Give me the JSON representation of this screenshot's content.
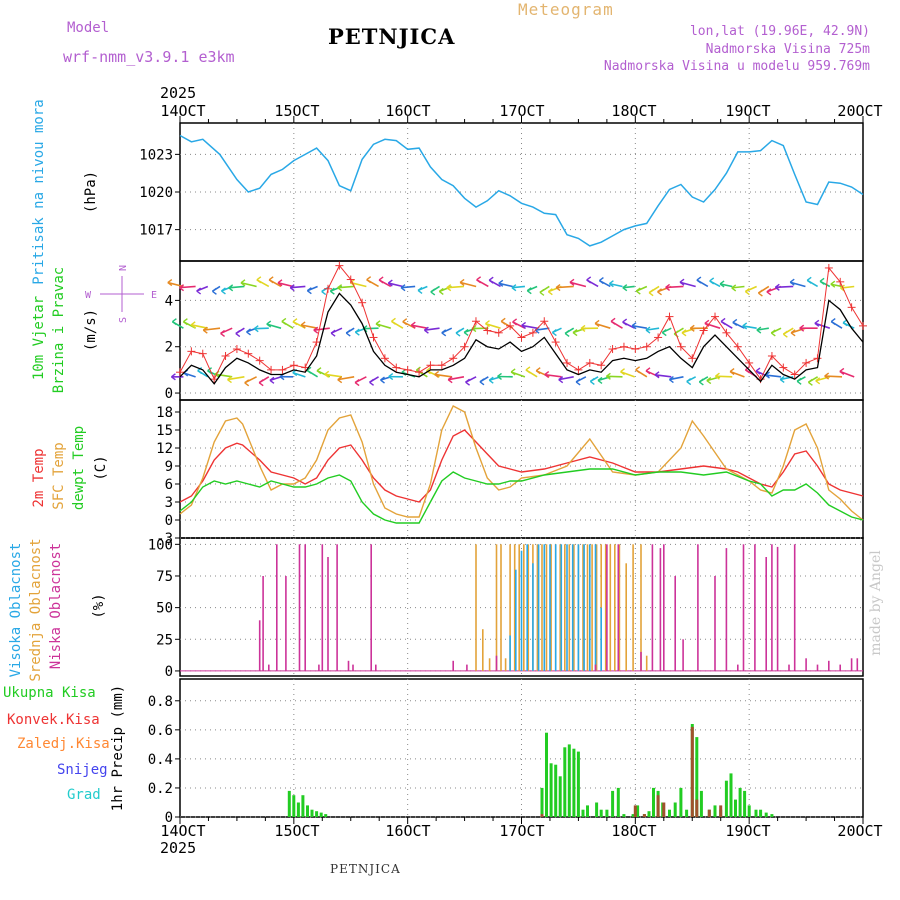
{
  "header": {
    "model_label": "Model",
    "model_value": "wrf-nmm_v3.9.1 e3km",
    "station": "PETNJICA",
    "meteogram": "Meteogram",
    "lonlat": "lon,lat (19.96E, 42.9N)",
    "altitude": "Nadmorska Visina 725m",
    "model_altitude": "Nadmorska Visina u modelu 959.769m",
    "year_top": "2025",
    "year_bottom": "2025",
    "footer_station": "PETNJICA",
    "credit": "made by Angel"
  },
  "x_axis": {
    "labels": [
      "14OCT",
      "15OCT",
      "16OCT",
      "17OCT",
      "18OCT",
      "19OCT",
      "20OCT"
    ],
    "days": [
      14,
      15,
      16,
      17,
      18,
      19,
      20
    ]
  },
  "colors": {
    "pressure": "#29a8e6",
    "wind_speed": "#000000",
    "wind_gust": "#ee3333",
    "temp2m": "#ee3333",
    "sfc_temp": "#e3a33a",
    "dewpt": "#22cc22",
    "cloud_high": "#29a8e6",
    "cloud_mid": "#e3a33a",
    "cloud_low": "#cc3399",
    "precip_total": "#22cc22",
    "precip_conv": "#ee3333",
    "precip_frz": "#ff8833",
    "precip_snow": "#4444ee",
    "precip_hail": "#22cccc"
  },
  "chart_data": [
    {
      "type": "line",
      "id": "pressure",
      "ylabel_main": "Pritisak na nivou mora",
      "ylabel_unit": "(hPa)",
      "yticks": [
        "1017",
        "1020",
        "1023"
      ],
      "ytick_values": [
        1017,
        1020,
        1023
      ],
      "ylim": [
        1014.5,
        1025.5
      ],
      "x": [
        14.0,
        14.1,
        14.2,
        14.35,
        14.5,
        14.6,
        14.7,
        14.8,
        14.9,
        15.0,
        15.1,
        15.2,
        15.3,
        15.4,
        15.5,
        15.6,
        15.7,
        15.8,
        15.9,
        16.0,
        16.1,
        16.2,
        16.3,
        16.4,
        16.5,
        16.6,
        16.7,
        16.8,
        16.9,
        17.0,
        17.1,
        17.2,
        17.3,
        17.4,
        17.5,
        17.6,
        17.7,
        17.8,
        17.9,
        18.0,
        18.1,
        18.2,
        18.3,
        18.4,
        18.5,
        18.6,
        18.7,
        18.8,
        18.9,
        19.0,
        19.1,
        19.2,
        19.3,
        19.4,
        19.5,
        19.6,
        19.7,
        19.8,
        19.9,
        20.0
      ],
      "y": [
        1024.5,
        1024.0,
        1024.2,
        1023.0,
        1021.0,
        1020.0,
        1020.3,
        1021.4,
        1021.8,
        1022.5,
        1023.0,
        1023.5,
        1022.5,
        1020.5,
        1020.1,
        1022.6,
        1023.8,
        1024.2,
        1024.1,
        1023.4,
        1023.5,
        1022.0,
        1021.0,
        1020.5,
        1019.5,
        1018.8,
        1019.3,
        1020.1,
        1019.7,
        1019.1,
        1018.8,
        1018.3,
        1018.2,
        1016.6,
        1016.3,
        1015.7,
        1016.0,
        1016.5,
        1017.0,
        1017.3,
        1017.5,
        1018.9,
        1020.2,
        1020.6,
        1019.6,
        1019.2,
        1020.2,
        1021.5,
        1023.2,
        1023.2,
        1023.3,
        1024.1,
        1023.7,
        1021.4,
        1019.2,
        1019.0,
        1020.8,
        1020.7,
        1020.4,
        1019.8
      ]
    },
    {
      "type": "line",
      "id": "wind",
      "ylabel_main": "10m Vjetar",
      "ylabel_sub": "Brzina i Pravac",
      "ylabel_unit": "(m/s)",
      "direction_legend": {
        "north": "N",
        "south": "S",
        "west": "W",
        "east": "E"
      },
      "yticks": [
        "0",
        "2",
        "4"
      ],
      "ytick_values": [
        0,
        2,
        4
      ],
      "ylim": [
        -0.3,
        5.7
      ],
      "x": [
        14.0,
        14.1,
        14.2,
        14.3,
        14.4,
        14.5,
        14.6,
        14.7,
        14.8,
        14.9,
        15.0,
        15.1,
        15.2,
        15.3,
        15.4,
        15.5,
        15.6,
        15.7,
        15.8,
        15.9,
        16.0,
        16.1,
        16.2,
        16.3,
        16.4,
        16.5,
        16.6,
        16.7,
        16.8,
        16.9,
        17.0,
        17.1,
        17.2,
        17.3,
        17.4,
        17.5,
        17.6,
        17.7,
        17.8,
        17.9,
        18.0,
        18.1,
        18.2,
        18.3,
        18.4,
        18.5,
        18.6,
        18.7,
        18.8,
        18.9,
        19.0,
        19.1,
        19.2,
        19.3,
        19.4,
        19.5,
        19.6,
        19.7,
        19.8,
        19.9,
        20.0
      ],
      "speed": [
        0.7,
        1.2,
        1.0,
        0.4,
        1.1,
        1.5,
        1.3,
        1.0,
        0.8,
        0.8,
        1.0,
        0.9,
        1.6,
        3.5,
        4.3,
        3.8,
        3.0,
        1.8,
        1.2,
        0.9,
        0.8,
        0.7,
        1.0,
        1.0,
        1.2,
        1.5,
        2.3,
        2.0,
        1.9,
        2.2,
        1.8,
        2.0,
        2.4,
        1.7,
        1.0,
        0.8,
        1.0,
        0.9,
        1.4,
        1.5,
        1.4,
        1.5,
        1.8,
        2.0,
        1.5,
        1.1,
        2.0,
        2.5,
        2.0,
        1.5,
        1.0,
        0.5,
        1.2,
        0.8,
        0.6,
        1.0,
        1.1,
        4.0,
        3.6,
        2.8,
        2.2
      ],
      "gust": [
        0.9,
        1.8,
        1.7,
        0.6,
        1.6,
        1.9,
        1.7,
        1.4,
        1.0,
        1.0,
        1.2,
        1.1,
        2.2,
        4.5,
        5.5,
        4.9,
        3.9,
        2.4,
        1.5,
        1.1,
        1.0,
        0.9,
        1.2,
        1.2,
        1.5,
        2.0,
        3.1,
        2.7,
        2.6,
        2.9,
        2.4,
        2.6,
        3.1,
        2.2,
        1.3,
        1.0,
        1.3,
        1.2,
        1.9,
        2.0,
        1.9,
        2.0,
        2.4,
        3.3,
        2.0,
        1.5,
        2.7,
        3.3,
        2.6,
        2.0,
        1.3,
        0.6,
        1.6,
        1.1,
        0.8,
        1.3,
        1.5,
        5.4,
        4.8,
        3.7,
        2.9
      ],
      "arrow_levels": [
        0.7,
        2.8,
        4.6
      ]
    },
    {
      "type": "line",
      "id": "temperature",
      "ylabel_main": "2m Temp",
      "ylabel_sub": "SFC Temp",
      "ylabel_sub2": "dewpt Temp",
      "ylabel_unit": "(C)",
      "yticks": [
        "-3",
        "0",
        "3",
        "6",
        "9",
        "12",
        "15",
        "18"
      ],
      "ytick_values": [
        -3,
        0,
        3,
        6,
        9,
        12,
        15,
        18
      ],
      "ylim": [
        -3,
        20
      ],
      "series": [
        {
          "name": "2m Temp",
          "x": [
            14.0,
            14.1,
            14.2,
            14.3,
            14.4,
            14.5,
            14.55,
            14.7,
            14.8,
            14.9,
            15.0,
            15.1,
            15.2,
            15.3,
            15.4,
            15.5,
            15.6,
            15.7,
            15.8,
            15.9,
            16.0,
            16.1,
            16.2,
            16.3,
            16.4,
            16.5,
            16.6,
            16.7,
            16.8,
            16.9,
            17.0,
            17.2,
            17.4,
            17.6,
            17.8,
            18.0,
            18.2,
            18.4,
            18.6,
            18.8,
            18.9,
            19.0,
            19.1,
            19.2,
            19.3,
            19.4,
            19.5,
            19.6,
            19.7,
            19.8,
            19.9,
            20.0
          ],
          "y": [
            3.0,
            4.0,
            6.5,
            10.0,
            12.0,
            12.8,
            12.5,
            10.0,
            8.0,
            7.5,
            7.0,
            6.0,
            7.0,
            10.0,
            12.0,
            12.5,
            10.0,
            7.0,
            5.0,
            4.0,
            3.5,
            3.0,
            5.0,
            10.0,
            14.0,
            15.0,
            13.0,
            11.0,
            9.0,
            8.5,
            8.0,
            8.5,
            9.5,
            10.5,
            9.5,
            8.0,
            8.0,
            8.5,
            9.0,
            8.5,
            8.0,
            7.0,
            6.0,
            5.5,
            8.0,
            11.0,
            11.5,
            9.0,
            6.0,
            5.0,
            4.5,
            4.0
          ]
        },
        {
          "name": "SFC Temp",
          "x": [
            14.0,
            14.1,
            14.2,
            14.3,
            14.4,
            14.5,
            14.55,
            14.7,
            14.8,
            14.9,
            15.0,
            15.1,
            15.2,
            15.3,
            15.4,
            15.5,
            15.6,
            15.7,
            15.8,
            15.9,
            16.0,
            16.1,
            16.2,
            16.3,
            16.4,
            16.5,
            16.6,
            16.7,
            16.8,
            16.9,
            17.0,
            17.2,
            17.4,
            17.6,
            17.8,
            18.0,
            18.2,
            18.4,
            18.5,
            18.6,
            18.8,
            18.9,
            19.0,
            19.1,
            19.2,
            19.3,
            19.4,
            19.5,
            19.6,
            19.7,
            19.8,
            19.9,
            20.0
          ],
          "y": [
            1.0,
            2.5,
            7.0,
            13.0,
            16.5,
            17.0,
            16.0,
            9.0,
            5.0,
            6.0,
            6.0,
            7.0,
            10.0,
            15.0,
            17.0,
            17.5,
            13.0,
            6.0,
            2.0,
            1.0,
            0.5,
            0.5,
            6.0,
            15.0,
            19.0,
            18.0,
            12.0,
            7.0,
            5.0,
            5.5,
            7.0,
            7.5,
            9.0,
            13.5,
            8.0,
            7.5,
            8.0,
            12.0,
            16.5,
            14.0,
            8.5,
            7.5,
            6.5,
            5.0,
            4.5,
            9.0,
            15.0,
            16.0,
            12.0,
            5.0,
            3.5,
            1.5,
            0.0
          ]
        },
        {
          "name": "dewpt Temp",
          "x": [
            14.0,
            14.1,
            14.2,
            14.3,
            14.4,
            14.5,
            14.6,
            14.7,
            14.8,
            14.9,
            15.0,
            15.1,
            15.2,
            15.3,
            15.4,
            15.5,
            15.6,
            15.7,
            15.8,
            15.9,
            16.0,
            16.1,
            16.2,
            16.3,
            16.4,
            16.5,
            16.6,
            16.7,
            16.8,
            16.9,
            17.0,
            17.2,
            17.4,
            17.6,
            17.8,
            18.0,
            18.2,
            18.4,
            18.6,
            18.8,
            19.0,
            19.1,
            19.2,
            19.3,
            19.4,
            19.5,
            19.6,
            19.7,
            19.8,
            19.9,
            20.0
          ],
          "y": [
            1.5,
            3.0,
            5.5,
            6.5,
            6.0,
            6.5,
            6.0,
            5.5,
            6.5,
            6.0,
            5.5,
            5.5,
            6.0,
            7.0,
            7.5,
            6.5,
            3.0,
            1.0,
            0.0,
            -0.5,
            -0.5,
            -0.5,
            3.0,
            6.5,
            8.0,
            7.0,
            6.5,
            6.0,
            6.0,
            6.5,
            6.5,
            7.5,
            8.0,
            8.5,
            8.5,
            7.5,
            8.0,
            8.0,
            7.5,
            8.0,
            6.5,
            6.0,
            4.0,
            5.0,
            5.0,
            6.0,
            4.5,
            2.5,
            1.5,
            0.5,
            0.0
          ]
        }
      ]
    },
    {
      "type": "bar",
      "id": "clouds",
      "ylabel_main": "Visoka Oblacnost",
      "ylabel_sub": "Srednja Oblacnost",
      "ylabel_sub2": "Niska Oblacnost",
      "ylabel_unit": "(%)",
      "yticks": [
        "0",
        "25",
        "50",
        "75",
        "100"
      ],
      "ytick_values": [
        0,
        25,
        50,
        75,
        100
      ],
      "ylim": [
        -4,
        105
      ],
      "low_x": [
        14.7,
        14.73,
        14.78,
        14.85,
        14.93,
        15.05,
        15.1,
        15.22,
        15.25,
        15.3,
        15.38,
        15.48,
        15.52,
        15.68,
        15.72,
        16.4,
        16.52,
        16.78,
        17.65,
        17.75,
        17.85,
        18.05,
        18.15,
        18.22,
        18.25,
        18.35,
        18.42,
        18.55,
        18.7,
        18.8,
        18.9,
        18.95,
        19.05,
        19.15,
        19.2,
        19.25,
        19.35,
        19.4,
        19.5,
        19.6,
        19.7,
        19.8,
        19.9,
        19.95
      ],
      "low_v": [
        40,
        75,
        5,
        100,
        75,
        100,
        100,
        5,
        100,
        90,
        100,
        8,
        5,
        100,
        5,
        8,
        5,
        12,
        5,
        100,
        100,
        15,
        100,
        97,
        100,
        75,
        25,
        100,
        75,
        97,
        5,
        100,
        100,
        90,
        100,
        98,
        5,
        100,
        10,
        5,
        8,
        5,
        10,
        10
      ],
      "mid_x": [
        16.6,
        16.66,
        16.72,
        16.78,
        16.82,
        16.86,
        16.9,
        16.94,
        16.98,
        17.02,
        17.06,
        17.1,
        17.14,
        17.18,
        17.22,
        17.26,
        17.3,
        17.34,
        17.38,
        17.42,
        17.46,
        17.5,
        17.54,
        17.58,
        17.62,
        17.66,
        17.7,
        17.74,
        17.78,
        17.82,
        17.86,
        17.92,
        17.98,
        18.05,
        18.1
      ],
      "mid_v": [
        100,
        33,
        10,
        100,
        100,
        10,
        100,
        100,
        100,
        100,
        100,
        100,
        100,
        100,
        100,
        100,
        100,
        100,
        100,
        100,
        100,
        100,
        100,
        100,
        100,
        100,
        100,
        100,
        100,
        100,
        100,
        85,
        100,
        100,
        12
      ],
      "high_x": [
        16.9,
        16.95,
        17.0,
        17.05,
        17.1,
        17.15,
        17.2,
        17.25,
        17.3,
        17.35,
        17.4,
        17.45,
        17.5,
        17.55,
        17.6,
        17.65,
        17.7
      ],
      "high_v": [
        28,
        80,
        95,
        100,
        85,
        100,
        100,
        100,
        100,
        100,
        100,
        100,
        100,
        100,
        100,
        100,
        50
      ]
    },
    {
      "type": "bar",
      "id": "precip",
      "ylabel_main": "1hr Precip (mm)",
      "legend": [
        "Ukupna Kisa",
        "Konvek.Kisa",
        "Zaledj.Kisa",
        "Snijeg",
        "Grad"
      ],
      "yticks": [
        "0",
        "0.2",
        "0.4",
        "0.6",
        "0.8"
      ],
      "ytick_values": [
        0,
        0.2,
        0.4,
        0.6,
        0.8
      ],
      "ylim": [
        0,
        0.95
      ],
      "total_x": [
        14.96,
        15.0,
        15.04,
        15.08,
        15.12,
        15.16,
        15.2,
        15.24,
        15.28,
        17.18,
        17.22,
        17.26,
        17.3,
        17.34,
        17.38,
        17.42,
        17.46,
        17.5,
        17.54,
        17.58,
        17.66,
        17.7,
        17.75,
        17.8,
        17.85,
        17.9,
        17.98,
        18.02,
        18.08,
        18.12,
        18.16,
        18.2,
        18.24,
        18.3,
        18.35,
        18.4,
        18.45,
        18.5,
        18.54,
        18.58,
        18.65,
        18.7,
        18.75,
        18.8,
        18.84,
        18.88,
        18.92,
        18.96,
        19.0,
        19.06,
        19.1,
        19.15,
        19.2
      ],
      "total_v": [
        0.18,
        0.15,
        0.1,
        0.15,
        0.08,
        0.05,
        0.04,
        0.03,
        0.02,
        0.2,
        0.58,
        0.37,
        0.36,
        0.28,
        0.48,
        0.5,
        0.47,
        0.45,
        0.05,
        0.08,
        0.1,
        0.05,
        0.05,
        0.18,
        0.2,
        0.02,
        0.02,
        0.08,
        0.02,
        0.04,
        0.2,
        0.18,
        0.1,
        0.05,
        0.1,
        0.2,
        0.05,
        0.64,
        0.55,
        0.18,
        0.05,
        0.08,
        0.05,
        0.25,
        0.3,
        0.12,
        0.2,
        0.18,
        0.08,
        0.05,
        0.05,
        0.03,
        0.02
      ],
      "conv_x": [
        17.18,
        18.0,
        18.08,
        18.2,
        18.25,
        18.5,
        18.54,
        18.65,
        18.75
      ],
      "conv_v": [
        0.02,
        0.08,
        0.02,
        0.15,
        0.1,
        0.62,
        0.12,
        0.05,
        0.08
      ]
    }
  ]
}
